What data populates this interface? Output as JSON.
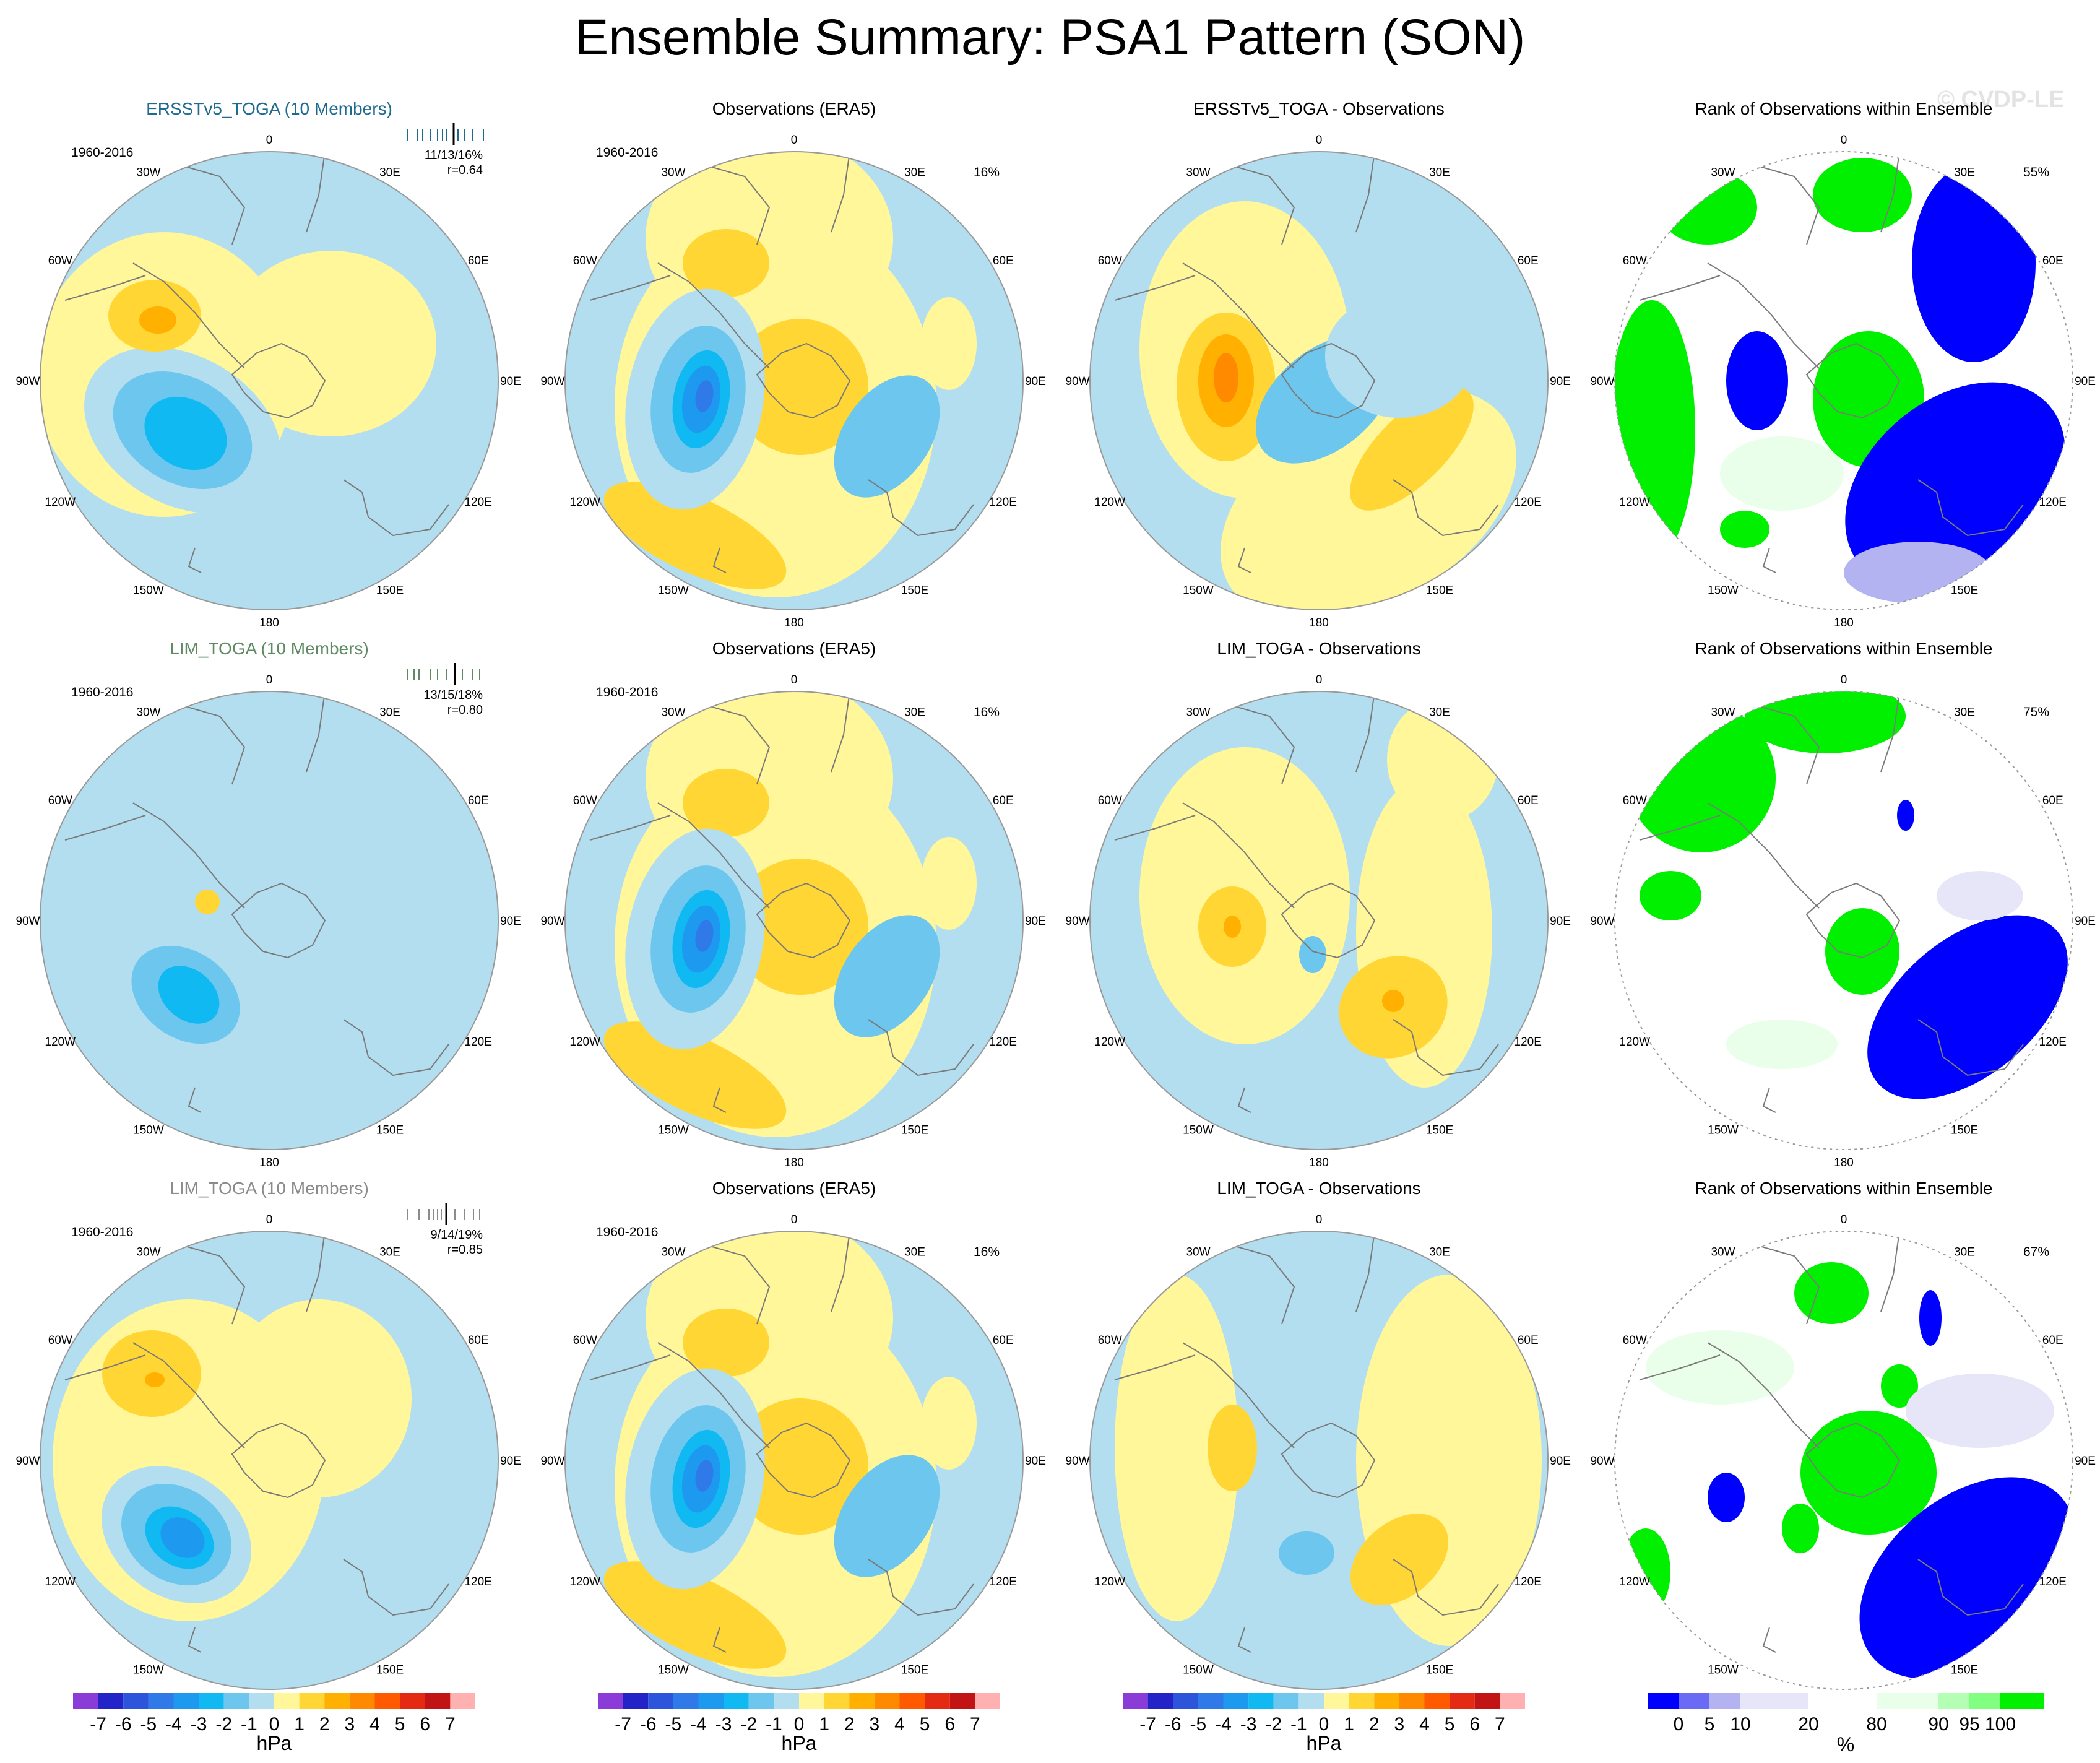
{
  "title": "Ensemble Summary: PSA1 Pattern (SON)",
  "watermark": "© CVDP-LE",
  "colors": {
    "hpa_scale": [
      "#8a3bd8",
      "#2323c8",
      "#2d55dc",
      "#2f7ae8",
      "#1e99f0",
      "#10b9f2",
      "#6cc6ee",
      "#b3def0",
      "#fff79a",
      "#ffd634",
      "#ffb000",
      "#ff8a00",
      "#ff5a00",
      "#e52a14",
      "#c21414",
      "#ffb0b0"
    ],
    "rank_scale": [
      "#0000ff",
      "#6a6af4",
      "#b3b3f2",
      "#e6e6f8",
      "#ffffff",
      "#e9ffe9",
      "#b4ffb4",
      "#80ff80",
      "#00f000"
    ],
    "coast": "#7a7a7a"
  },
  "rows": [
    {
      "model": {
        "title": "ERSSTv5_TOGA (10 Members)",
        "period": "1960-2016",
        "stat": "11/13/16%",
        "r": "r=0.64"
      },
      "obs": {
        "title": "Observations (ERA5)",
        "period": "1960-2016",
        "pct": "16%"
      },
      "diff": {
        "title": "ERSSTv5_TOGA - Observations"
      },
      "rank": {
        "title": "Rank of Observations within Ensemble",
        "pct": "55%"
      }
    },
    {
      "model": {
        "title": "LIM_TOGA (10 Members)",
        "period": "1960-2016",
        "stat": "13/15/18%",
        "r": "r=0.80"
      },
      "obs": {
        "title": "Observations (ERA5)",
        "period": "1960-2016",
        "pct": "16%"
      },
      "diff": {
        "title": "LIM_TOGA - Observations"
      },
      "rank": {
        "title": "Rank of Observations within Ensemble",
        "pct": "75%"
      }
    },
    {
      "model": {
        "title": "LIM_TOGA (10 Members)",
        "period": "1960-2016",
        "stat": "9/14/19%",
        "r": "r=0.85"
      },
      "obs": {
        "title": "Observations (ERA5)",
        "period": "1960-2016",
        "pct": "16%"
      },
      "diff": {
        "title": "LIM_TOGA - Observations"
      },
      "rank": {
        "title": "Rank of Observations within Ensemble",
        "pct": "67%"
      }
    }
  ],
  "map_labels": [
    "0",
    "30E",
    "60E",
    "90E",
    "120E",
    "150E",
    "180",
    "150W",
    "120W",
    "90W",
    "60W",
    "30W"
  ],
  "colorbar_hpa": {
    "ticks": [
      "-7",
      "-6",
      "-5",
      "-4",
      "-3",
      "-2",
      "-1",
      "0",
      "1",
      "2",
      "3",
      "4",
      "5",
      "6",
      "7"
    ],
    "unit": "hPa"
  },
  "colorbar_rank": {
    "ticks": [
      "0",
      "5",
      "10",
      "20",
      "80",
      "90",
      "95",
      "100"
    ],
    "unit": "%"
  }
}
